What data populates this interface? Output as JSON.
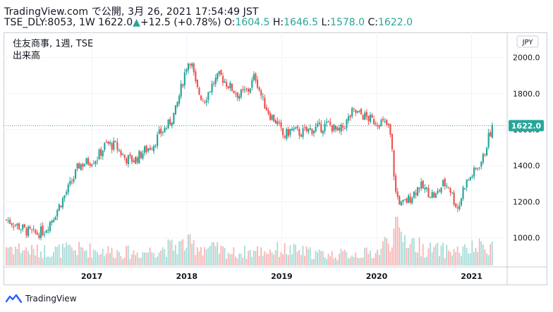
{
  "header": {
    "published_line": "TradingView.com で公開, 3月 26, 2021 17:54:49 JST",
    "symbol": "TSE_DLY:8053, 1W",
    "last": "1622.0",
    "change_arrow": "▲",
    "change": "+12.5 (+0.78%)",
    "o_label": "O:",
    "o_value": "1604.5",
    "h_label": "H:",
    "h_value": "1646.5",
    "l_label": "L:",
    "l_value": "1578.0",
    "c_label": "C:",
    "c_value": "1622.0"
  },
  "legend": {
    "title": "住友商事, 1週, TSE",
    "volume": "出来高"
  },
  "axis": {
    "currency": "JPY",
    "last_price_tag": "1622.0"
  },
  "footer": {
    "brand": "TradingView"
  },
  "colors": {
    "up": "#26a69a",
    "down": "#ef5350",
    "vol_up": "#a6dbd6",
    "vol_down": "#f7b5b4",
    "accent": "#2962ff"
  },
  "chart_data": {
    "type": "candlestick",
    "symbol": "TSE_DLY:8053",
    "interval": "1W",
    "ylim": [
      850,
      2100
    ],
    "y_ticks": [
      1000,
      1200,
      1400,
      1600,
      1800,
      2000
    ],
    "y_tick_labels": [
      "1000.0",
      "1200.0",
      "1400.0",
      "1600.0",
      "1800.0",
      "2000.0"
    ],
    "x_ticks": [
      2017,
      2018,
      2019,
      2020,
      2021
    ],
    "x_tick_labels": [
      "2017",
      "2018",
      "2019",
      "2020",
      "2021"
    ],
    "xlim": [
      2016.1,
      2021.3
    ],
    "last_close": 1622.0,
    "close_path": [
      [
        2016.1,
        1100
      ],
      [
        2016.18,
        1080
      ],
      [
        2016.3,
        1040
      ],
      [
        2016.4,
        1020
      ],
      [
        2016.5,
        1040
      ],
      [
        2016.6,
        1120
      ],
      [
        2016.72,
        1240
      ],
      [
        2016.8,
        1320
      ],
      [
        2016.86,
        1400
      ],
      [
        2016.95,
        1420
      ],
      [
        2017.05,
        1440
      ],
      [
        2017.15,
        1520
      ],
      [
        2017.25,
        1510
      ],
      [
        2017.35,
        1440
      ],
      [
        2017.45,
        1430
      ],
      [
        2017.55,
        1480
      ],
      [
        2017.65,
        1520
      ],
      [
        2017.72,
        1580
      ],
      [
        2017.8,
        1620
      ],
      [
        2017.88,
        1700
      ],
      [
        2017.95,
        1850
      ],
      [
        2018.0,
        1960
      ],
      [
        2018.04,
        1990
      ],
      [
        2018.1,
        1830
      ],
      [
        2018.18,
        1760
      ],
      [
        2018.28,
        1860
      ],
      [
        2018.35,
        1900
      ],
      [
        2018.45,
        1840
      ],
      [
        2018.55,
        1790
      ],
      [
        2018.65,
        1820
      ],
      [
        2018.72,
        1900
      ],
      [
        2018.8,
        1760
      ],
      [
        2018.88,
        1680
      ],
      [
        2018.95,
        1640
      ],
      [
        2019.02,
        1560
      ],
      [
        2019.1,
        1600
      ],
      [
        2019.2,
        1580
      ],
      [
        2019.3,
        1600
      ],
      [
        2019.4,
        1610
      ],
      [
        2019.5,
        1630
      ],
      [
        2019.6,
        1580
      ],
      [
        2019.68,
        1640
      ],
      [
        2019.75,
        1700
      ],
      [
        2019.85,
        1680
      ],
      [
        2019.95,
        1650
      ],
      [
        2020.05,
        1640
      ],
      [
        2020.12,
        1620
      ],
      [
        2020.15,
        1550
      ],
      [
        2020.2,
        1250
      ],
      [
        2020.26,
        1180
      ],
      [
        2020.35,
        1220
      ],
      [
        2020.45,
        1290
      ],
      [
        2020.55,
        1250
      ],
      [
        2020.62,
        1230
      ],
      [
        2020.7,
        1300
      ],
      [
        2020.76,
        1290
      ],
      [
        2020.82,
        1200
      ],
      [
        2020.86,
        1160
      ],
      [
        2020.92,
        1290
      ],
      [
        2020.98,
        1330
      ],
      [
        2021.05,
        1380
      ],
      [
        2021.12,
        1440
      ],
      [
        2021.18,
        1560
      ],
      [
        2021.23,
        1622
      ]
    ],
    "volume_profile": [
      [
        2016.1,
        0.55
      ],
      [
        2016.4,
        0.4
      ],
      [
        2016.9,
        0.45
      ],
      [
        2017.5,
        0.35
      ],
      [
        2018.0,
        0.6
      ],
      [
        2018.5,
        0.35
      ],
      [
        2019.0,
        0.45
      ],
      [
        2019.5,
        0.3
      ],
      [
        2020.0,
        0.35
      ],
      [
        2020.2,
        0.95
      ],
      [
        2020.5,
        0.45
      ],
      [
        2020.9,
        0.4
      ],
      [
        2021.23,
        0.6
      ]
    ]
  }
}
